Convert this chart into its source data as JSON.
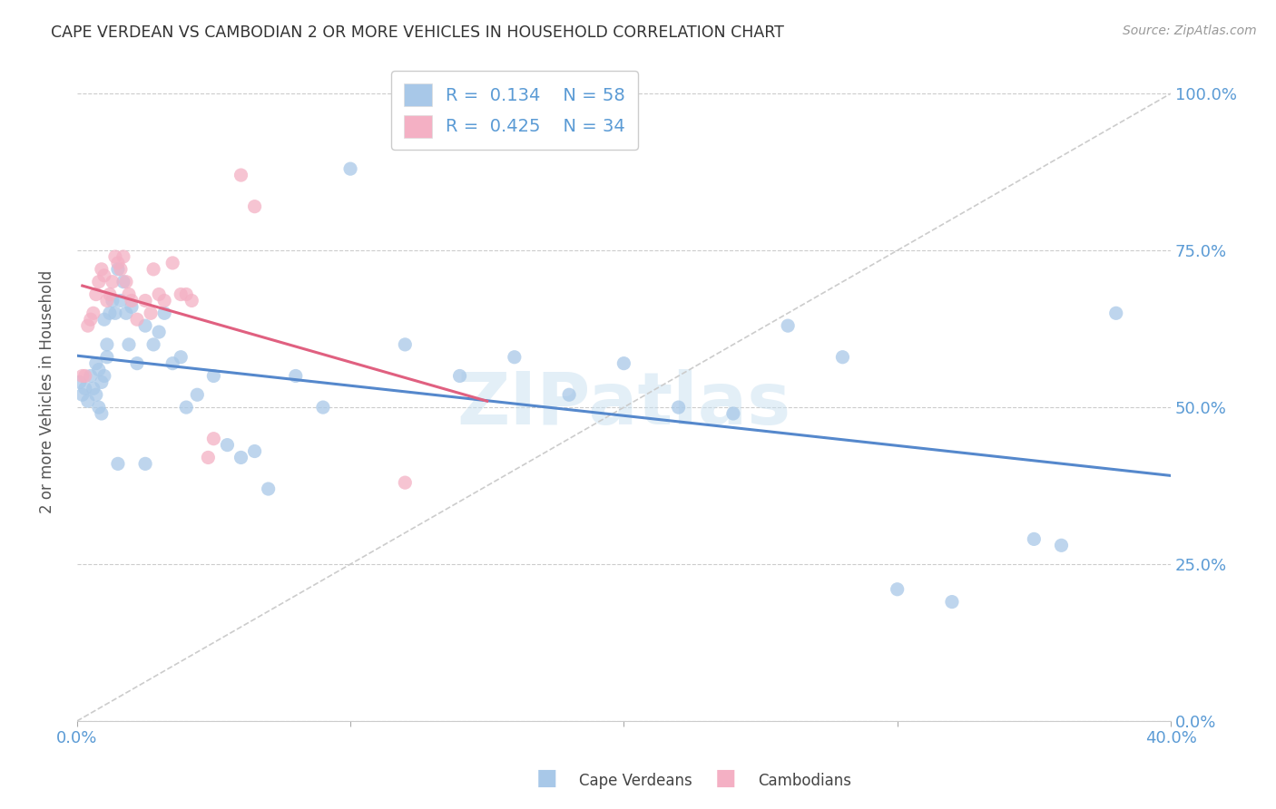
{
  "title": "CAPE VERDEAN VS CAMBODIAN 2 OR MORE VEHICLES IN HOUSEHOLD CORRELATION CHART",
  "source": "Source: ZipAtlas.com",
  "ylabel": "2 or more Vehicles in Household",
  "xlim": [
    0.0,
    0.4
  ],
  "ylim": [
    0.0,
    1.05
  ],
  "xtick_vals": [
    0.0,
    0.1,
    0.2,
    0.3,
    0.4
  ],
  "xtick_labels": [
    "0.0%",
    "",
    "",
    "",
    "40.0%"
  ],
  "ytick_vals": [
    0.0,
    0.25,
    0.5,
    0.75,
    1.0
  ],
  "ytick_labels": [
    "0.0%",
    "25.0%",
    "50.0%",
    "75.0%",
    "100.0%"
  ],
  "cape_verdean_color": "#a8c8e8",
  "cambodian_color": "#f4b0c4",
  "trend_cape_verdean_color": "#5588cc",
  "trend_cambodian_color": "#e06080",
  "diagonal_color": "#cccccc",
  "R_cape_verdean": "0.134",
  "N_cape_verdean": "58",
  "R_cambodian": "0.425",
  "N_cambodian": "34",
  "watermark": "ZIPatlas",
  "title_color": "#333333",
  "tick_color": "#5b9bd5",
  "legend_cape_verdean_label": "Cape Verdeans",
  "legend_cambodian_label": "Cambodians",
  "cape_verdean_x": [
    0.001,
    0.002,
    0.003,
    0.004,
    0.005,
    0.006,
    0.007,
    0.007,
    0.008,
    0.008,
    0.009,
    0.009,
    0.01,
    0.01,
    0.011,
    0.011,
    0.012,
    0.013,
    0.014,
    0.015,
    0.016,
    0.017,
    0.018,
    0.019,
    0.02,
    0.022,
    0.025,
    0.028,
    0.03,
    0.032,
    0.035,
    0.038,
    0.04,
    0.044,
    0.05,
    0.055,
    0.06,
    0.065,
    0.07,
    0.08,
    0.09,
    0.1,
    0.12,
    0.14,
    0.16,
    0.18,
    0.2,
    0.22,
    0.24,
    0.26,
    0.28,
    0.3,
    0.32,
    0.35,
    0.36,
    0.38,
    0.015,
    0.025
  ],
  "cape_verdean_y": [
    0.54,
    0.52,
    0.53,
    0.51,
    0.55,
    0.53,
    0.57,
    0.52,
    0.56,
    0.5,
    0.54,
    0.49,
    0.55,
    0.64,
    0.6,
    0.58,
    0.65,
    0.67,
    0.65,
    0.72,
    0.67,
    0.7,
    0.65,
    0.6,
    0.66,
    0.57,
    0.63,
    0.6,
    0.62,
    0.65,
    0.57,
    0.58,
    0.5,
    0.52,
    0.55,
    0.44,
    0.42,
    0.43,
    0.37,
    0.55,
    0.5,
    0.88,
    0.6,
    0.55,
    0.58,
    0.52,
    0.57,
    0.5,
    0.49,
    0.63,
    0.58,
    0.21,
    0.19,
    0.29,
    0.28,
    0.65,
    0.41,
    0.41
  ],
  "cambodian_x": [
    0.002,
    0.003,
    0.004,
    0.005,
    0.006,
    0.007,
    0.008,
    0.009,
    0.01,
    0.011,
    0.012,
    0.013,
    0.014,
    0.015,
    0.016,
    0.017,
    0.018,
    0.019,
    0.02,
    0.022,
    0.025,
    0.027,
    0.028,
    0.03,
    0.032,
    0.035,
    0.038,
    0.04,
    0.042,
    0.048,
    0.05,
    0.06,
    0.065,
    0.12
  ],
  "cambodian_y": [
    0.55,
    0.55,
    0.63,
    0.64,
    0.65,
    0.68,
    0.7,
    0.72,
    0.71,
    0.67,
    0.68,
    0.7,
    0.74,
    0.73,
    0.72,
    0.74,
    0.7,
    0.68,
    0.67,
    0.64,
    0.67,
    0.65,
    0.72,
    0.68,
    0.67,
    0.73,
    0.68,
    0.68,
    0.67,
    0.42,
    0.45,
    0.87,
    0.82,
    0.38
  ]
}
